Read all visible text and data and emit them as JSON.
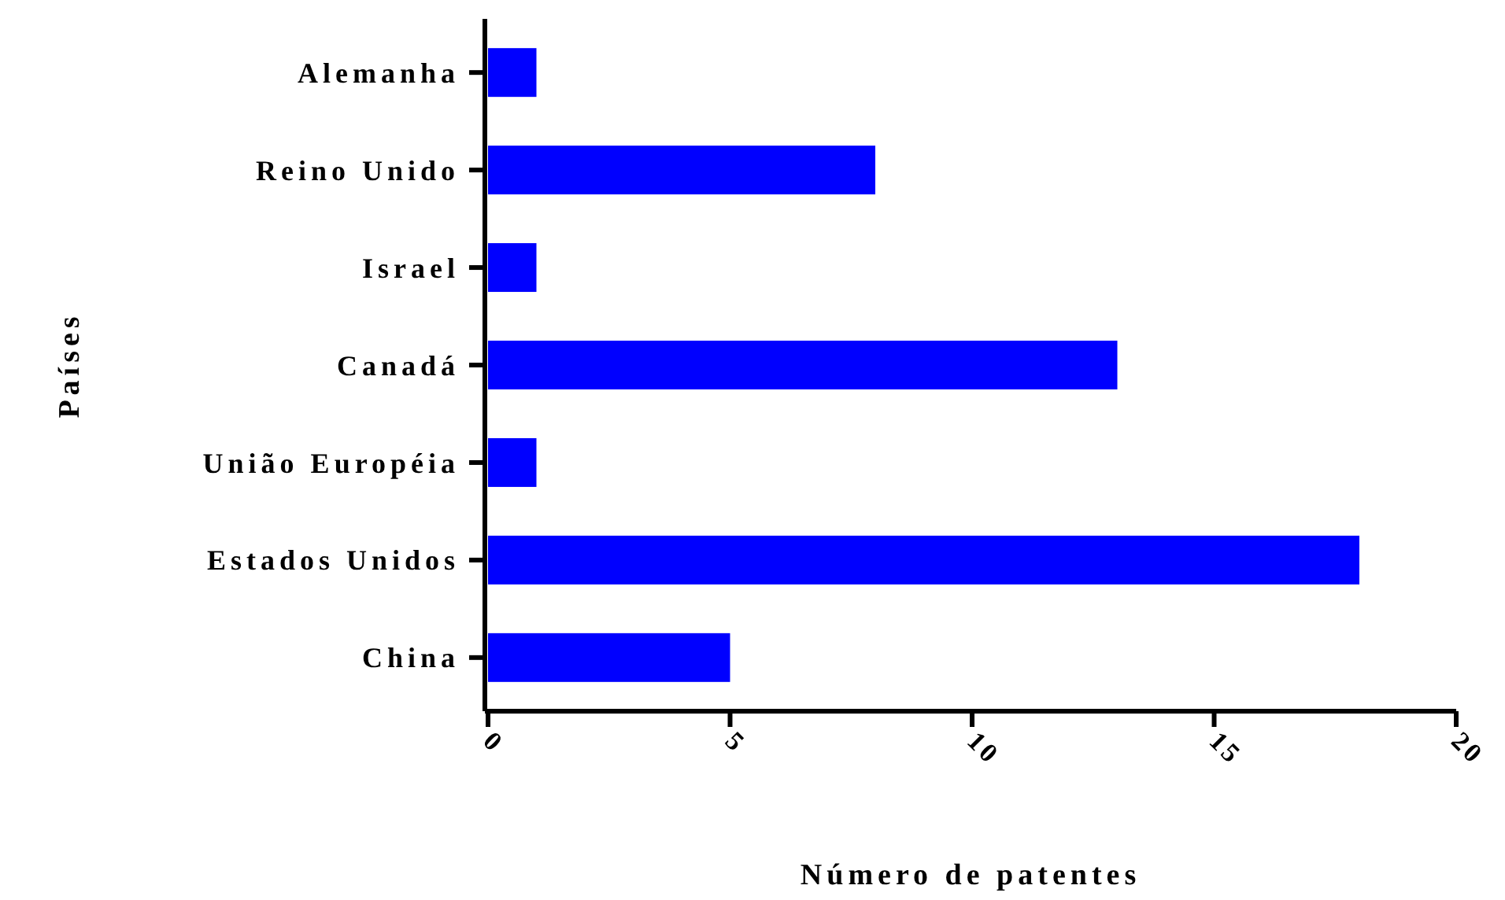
{
  "chart_data": {
    "type": "bar",
    "orientation": "horizontal",
    "xlabel": "Número de patentes",
    "ylabel": "Países",
    "categories": [
      "Alemanha",
      "Reino Unido",
      "Israel",
      "Canadá",
      "União Européia",
      "Estados Unidos",
      "China"
    ],
    "values": [
      1,
      8,
      1,
      13,
      1,
      18,
      5
    ],
    "color": "#0000ff",
    "xlim": [
      0,
      20
    ],
    "xticks": [
      0,
      5,
      10,
      15,
      20
    ],
    "grid": false
  }
}
